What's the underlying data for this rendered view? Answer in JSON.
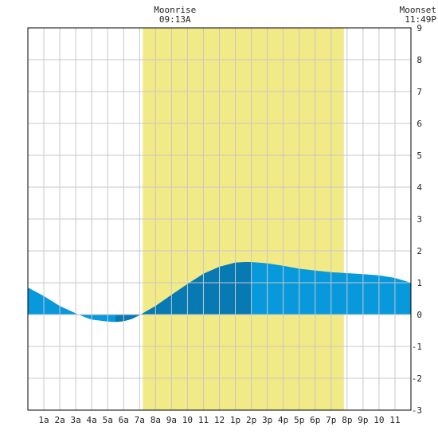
{
  "chart_data": {
    "type": "area",
    "title": "",
    "xlabel": "",
    "ylabel": "",
    "x_range_hours": [
      0,
      24
    ],
    "ylim": [
      -3,
      9
    ],
    "x_tick_labels": [
      "1a",
      "2a",
      "3a",
      "4a",
      "5a",
      "6a",
      "7a",
      "8a",
      "9a",
      "10",
      "11",
      "12",
      "1p",
      "2p",
      "3p",
      "4p",
      "5p",
      "6p",
      "7p",
      "8p",
      "9p",
      "10",
      "11"
    ],
    "y_tick_labels": [
      "-3",
      "-2",
      "-1",
      "0",
      "1",
      "2",
      "3",
      "4",
      "5",
      "6",
      "7",
      "8",
      "9"
    ],
    "grid": true,
    "moon_visible_band_hours": [
      7.2,
      19.8
    ],
    "annotations": [
      {
        "label": "Moonrise",
        "time": "09:13A",
        "hour": 9.22
      },
      {
        "label": "Moonset",
        "time": "11:49P",
        "hour": 23.82
      }
    ],
    "series": [
      {
        "name": "",
        "x": [
          0,
          1,
          2,
          3,
          3.5,
          4,
          5,
          5.5,
          6,
          6.5,
          7,
          8,
          9,
          10,
          11,
          12,
          13,
          13.7,
          14,
          15,
          16,
          17,
          18,
          19,
          20,
          21,
          22,
          23,
          24
        ],
        "values": [
          0.85,
          0.58,
          0.27,
          0.04,
          -0.07,
          -0.16,
          -0.22,
          -0.23,
          -0.21,
          -0.14,
          -0.02,
          0.27,
          0.62,
          0.96,
          1.28,
          1.5,
          1.63,
          1.65,
          1.65,
          1.61,
          1.53,
          1.44,
          1.38,
          1.33,
          1.3,
          1.27,
          1.23,
          1.15,
          1.0
        ]
      }
    ],
    "colors": {
      "tide_fill": "#0899dd",
      "tide_dark": "#0779b3",
      "moon_band": "#f2ea86",
      "grid": "#c8c8c8",
      "axis": "#000000"
    },
    "dark_bands_hours": [
      [
        5.5,
        7.0
      ],
      [
        7.0,
        14.0
      ]
    ]
  }
}
